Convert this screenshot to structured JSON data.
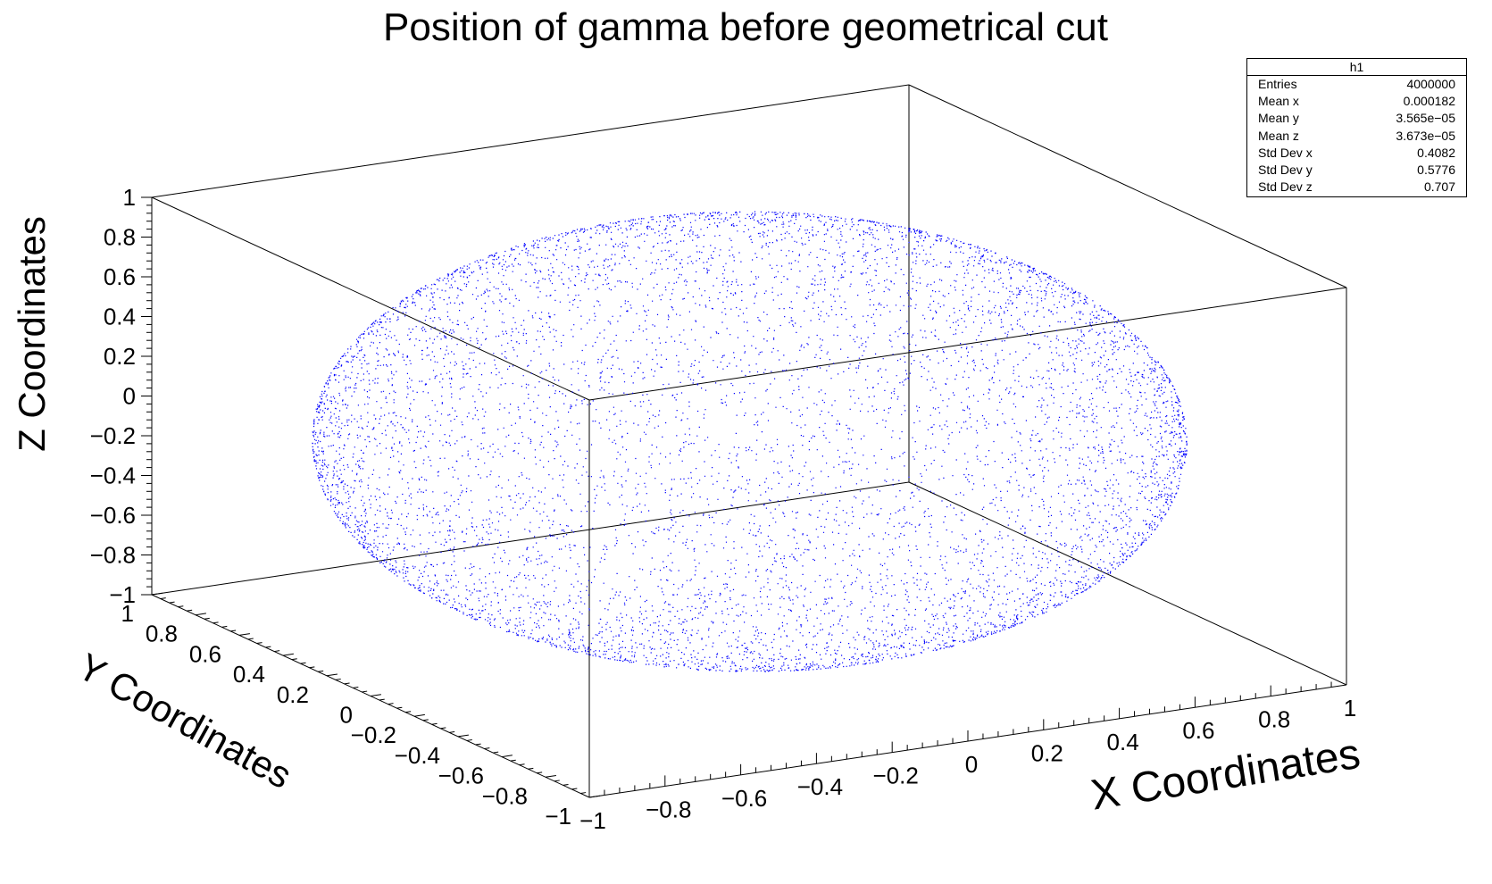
{
  "chart_data": {
    "type": "scatter",
    "title": "Position of gamma before geometrical cut",
    "xlabel": "X Coordinates",
    "ylabel": "Y Coordinates",
    "zlabel": "Z Coordinates",
    "xlim": [
      -1,
      1
    ],
    "ylim": [
      -1,
      1
    ],
    "zlim": [
      -1,
      1
    ],
    "x_ticks": [
      "−1",
      "−0.8",
      "−0.6",
      "−0.4",
      "−0.2",
      "0",
      "0.2",
      "0.4",
      "0.6",
      "0.8",
      "1"
    ],
    "y_ticks": [
      "1",
      "0.8",
      "0.6",
      "0.4",
      "0.2",
      "0",
      "−0.2",
      "−0.4",
      "−0.6",
      "−0.8",
      "−1"
    ],
    "z_ticks": [
      "1",
      "0.8",
      "0.6",
      "0.4",
      "0.2",
      "0",
      "−0.2",
      "−0.4",
      "−0.6",
      "−0.8",
      "−1"
    ],
    "distribution": "points uniformly on unit sphere surface",
    "point_color": "#0000ff",
    "grid": false,
    "legend_position": "top-right",
    "stats": {
      "name": "h1",
      "rows": [
        {
          "label": "Entries",
          "value": "4000000"
        },
        {
          "label": "Mean x",
          "value": "0.000182"
        },
        {
          "label": "Mean y",
          "value": "3.565e−05"
        },
        {
          "label": "Mean z",
          "value": "3.673e−05"
        },
        {
          "label": "Std Dev x",
          "value": "0.4082"
        },
        {
          "label": "Std Dev y",
          "value": "0.5776"
        },
        {
          "label": "Std Dev z",
          "value": "0.707"
        }
      ]
    }
  }
}
